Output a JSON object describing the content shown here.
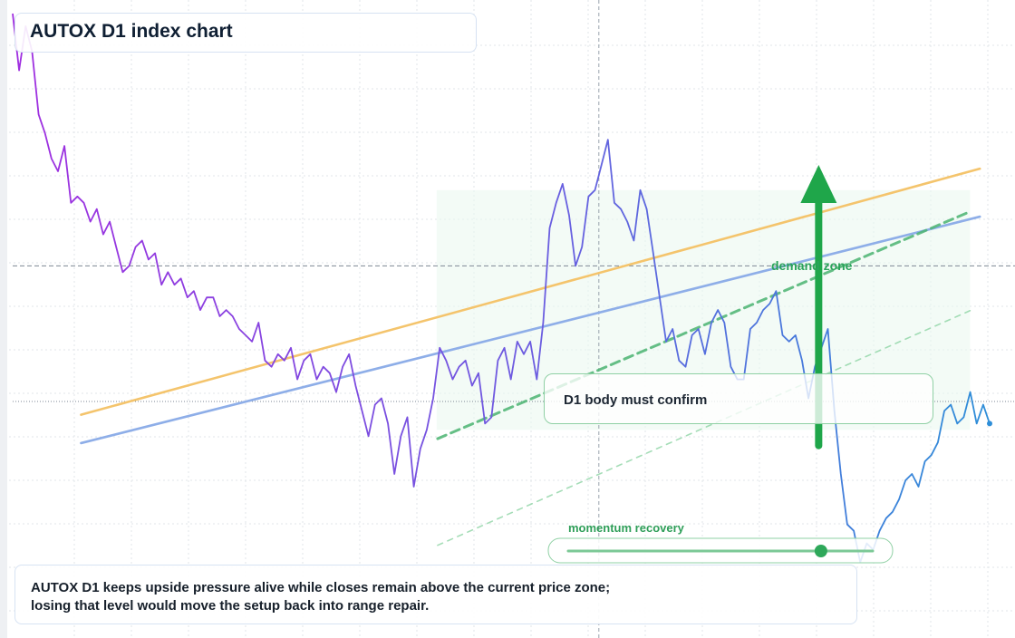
{
  "title": "AUTOX D1 index chart",
  "annotations": {
    "confirm": "D1 body must confirm",
    "momentum": "momentum recovery",
    "demand": "demand zone"
  },
  "commentary": {
    "line1": "AUTOX D1 keeps upside pressure alive while closes remain above the current price zone;",
    "line2": "losing that level would move the setup back into range repair."
  },
  "colors": {
    "price_start": "#a02ee0",
    "price_mid": "#6a5ee0",
    "price_end": "#2e8ed8",
    "trend_orange": "#f4c46c",
    "trend_blue": "#8eaee8",
    "green": "#1fa64a",
    "zone_fill": "#eaf7ee"
  },
  "chart_data": {
    "type": "line",
    "title": "AUTOX D1 index chart",
    "xlabel": "",
    "ylabel": "",
    "grid": true,
    "y_domain": [
      0,
      100
    ],
    "x_domain": [
      0,
      100
    ],
    "series": [
      {
        "values": [
          99,
          90,
          97,
          93,
          83,
          80,
          76,
          74,
          78,
          69,
          70,
          69,
          66,
          68,
          64,
          66,
          62,
          58,
          59,
          62,
          63,
          60,
          61,
          56,
          58,
          56,
          57,
          54,
          55,
          52,
          54,
          54,
          51,
          52,
          51,
          49,
          48,
          47,
          50,
          44,
          43,
          45,
          44,
          46,
          41,
          44,
          45,
          41,
          43,
          42,
          39,
          43,
          45,
          40,
          36,
          32,
          37,
          38,
          34,
          26,
          32,
          35,
          24,
          30,
          33,
          38,
          46,
          44,
          41,
          43,
          44,
          40,
          42,
          34,
          35,
          44,
          46,
          41,
          47,
          45,
          47,
          41,
          50,
          65,
          69,
          72,
          67,
          59,
          62,
          70,
          71,
          75,
          79,
          69,
          68,
          66,
          63,
          71,
          68,
          61,
          54,
          47,
          49,
          44,
          43,
          48,
          49,
          45,
          50,
          52,
          50,
          43,
          41,
          41,
          49,
          50,
          52,
          53,
          55,
          48,
          47,
          48,
          44,
          38,
          43,
          46,
          49,
          36,
          26,
          18,
          17,
          12,
          15,
          14,
          17,
          19,
          20,
          22,
          25,
          26,
          24,
          28,
          29,
          31,
          36,
          37,
          34,
          35,
          39,
          34,
          37,
          34
        ]
      }
    ],
    "trendlines": [
      {
        "name": "upper",
        "start": [
          7,
          35.4
        ],
        "end": [
          99,
          74.4
        ]
      },
      {
        "name": "lower",
        "start": [
          7,
          30.9
        ],
        "end": [
          99,
          66.8
        ]
      },
      {
        "name": "green-dashed",
        "start": [
          43.5,
          31.6
        ],
        "end": [
          98,
          67.6
        ]
      },
      {
        "name": "green-dotted",
        "start": [
          43.5,
          14.7
        ],
        "end": [
          98,
          51.9
        ]
      }
    ],
    "demand_zone": {
      "x": [
        43.4,
        98
      ],
      "y": [
        33,
        71
      ]
    },
    "horizontal_levels": [
      {
        "style": "dashed",
        "y": 59
      },
      {
        "style": "dotted",
        "y": 37.5
      }
    ],
    "vertical_marker": {
      "style": "dashed",
      "x": 60
    },
    "arrow": {
      "x": 82.5,
      "from": 30.5,
      "to": 75
    },
    "momentum_bar": {
      "fill": 0.83
    }
  }
}
